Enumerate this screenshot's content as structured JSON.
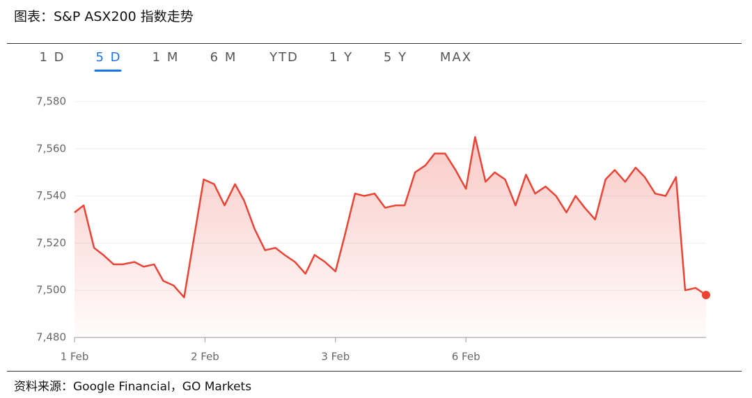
{
  "title": "图表：S&P ASX200 指数走势",
  "tabs": [
    "1 D",
    "5 D",
    "1 M",
    "6 M",
    "YTD",
    "1 Y",
    "5 Y",
    "MAX"
  ],
  "source": "资料来源：Google Financial，GO Markets",
  "chart_data": {
    "type": "area",
    "color": "#ea4335",
    "grid": true,
    "x": [
      0,
      0.07,
      0.15,
      0.22,
      0.3,
      0.37,
      0.46,
      0.53,
      0.61,
      0.68,
      0.76,
      0.84,
      0.99,
      1.07,
      1.15,
      1.23,
      1.3,
      1.38,
      1.46,
      1.54,
      1.61,
      1.69,
      1.77,
      1.84,
      1.92,
      2.0,
      2.07,
      2.15,
      2.22,
      2.3,
      2.38,
      2.46,
      2.53,
      2.61,
      2.69,
      2.76,
      2.84,
      2.92,
      3.0,
      3.07,
      3.15,
      3.22,
      3.3,
      3.38,
      3.46,
      3.53,
      3.61,
      3.69,
      3.77,
      3.84,
      3.91,
      3.99,
      4.07,
      4.14,
      4.22,
      4.3,
      4.37,
      4.45,
      4.53,
      4.61,
      4.68,
      4.76,
      4.84
    ],
    "values": [
      7533,
      7536,
      7518,
      7515,
      7511,
      7511,
      7512,
      7510,
      7511,
      7504,
      7502,
      7497,
      7547,
      7545,
      7536,
      7545,
      7538,
      7526,
      7517,
      7518,
      7515,
      7512,
      7507,
      7515,
      7512,
      7508,
      7523,
      7541,
      7540,
      7541,
      7535,
      7536,
      7536,
      7550,
      7553,
      7558,
      7558,
      7551,
      7543,
      7565,
      7546,
      7550,
      7547,
      7536,
      7549,
      7541,
      7544,
      7540,
      7533,
      7540,
      7535,
      7530,
      7547,
      7551,
      7546,
      7552,
      7548,
      7541,
      7540,
      7548,
      7500,
      7501,
      7498
    ],
    "xlim": [
      0,
      4.84
    ],
    "xticks": [
      {
        "value": 0,
        "label": "1 Feb"
      },
      {
        "value": 1,
        "label": "2 Feb"
      },
      {
        "value": 2,
        "label": "3 Feb"
      },
      {
        "value": 3,
        "label": "6 Feb"
      }
    ],
    "ylim": [
      7480,
      7580
    ],
    "yticks": [
      {
        "value": 7480,
        "label": "7,480"
      },
      {
        "value": 7500,
        "label": "7,500"
      },
      {
        "value": 7520,
        "label": "7,520"
      },
      {
        "value": 7540,
        "label": "7,540"
      },
      {
        "value": 7560,
        "label": "7,560"
      },
      {
        "value": 7580,
        "label": "7,580"
      }
    ]
  }
}
